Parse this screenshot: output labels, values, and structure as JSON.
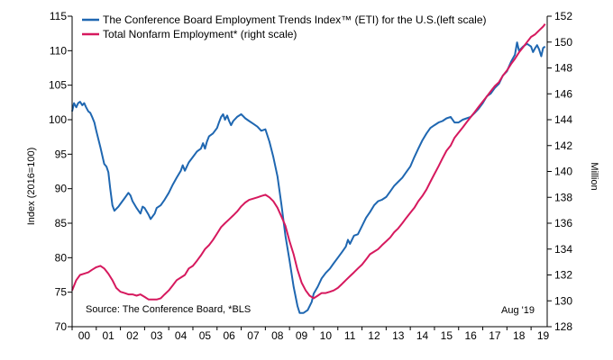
{
  "chart_data": {
    "type": "line",
    "legend": {
      "placement": "top-left",
      "entries": [
        "The Conference Board Employment Trends Index™ (ETI) for the U.S.(left scale)",
        "Total Nonfarm Employment* (right scale)"
      ]
    },
    "ylabel_left": "Index (2016=100)",
    "ylabel_right": "Million",
    "left_axis": {
      "min": 70,
      "max": 115,
      "ticks": [
        "70",
        "75",
        "80",
        "85",
        "90",
        "95",
        "100",
        "105",
        "110",
        "115"
      ]
    },
    "right_axis": {
      "min": 128,
      "max": 152,
      "ticks": [
        "128",
        "130",
        "132",
        "134",
        "136",
        "138",
        "140",
        "142",
        "144",
        "146",
        "148",
        "150",
        "152"
      ]
    },
    "x_axis": {
      "min": 2000,
      "max": 2019.667,
      "ticks": [
        "00",
        "01",
        "02",
        "03",
        "04",
        "05",
        "06",
        "07",
        "08",
        "09",
        "10",
        "11",
        "12",
        "13",
        "14",
        "15",
        "16",
        "17",
        "18",
        "19"
      ]
    },
    "source": "Source: The Conference Board, *BLS",
    "date_note": "Aug '19",
    "colors": {
      "eti": "#1f67b1",
      "nonfarm": "#d6195e",
      "axis": "#000000"
    },
    "series": [
      {
        "name": "The Conference Board Employment Trends Index™ (ETI) for the U.S.(left scale)",
        "axis": "left",
        "points": [
          [
            2000.0,
            101.2
          ],
          [
            2000.08,
            102.4
          ],
          [
            2000.17,
            101.8
          ],
          [
            2000.25,
            102.4
          ],
          [
            2000.33,
            102.6
          ],
          [
            2000.42,
            102.1
          ],
          [
            2000.5,
            102.4
          ],
          [
            2000.58,
            101.8
          ],
          [
            2000.67,
            101.2
          ],
          [
            2000.75,
            101.0
          ],
          [
            2000.83,
            100.4
          ],
          [
            2000.92,
            99.6
          ],
          [
            2001.0,
            98.4
          ],
          [
            2001.17,
            96.0
          ],
          [
            2001.33,
            93.6
          ],
          [
            2001.42,
            93.2
          ],
          [
            2001.5,
            92.4
          ],
          [
            2001.58,
            90.0
          ],
          [
            2001.67,
            87.6
          ],
          [
            2001.75,
            86.8
          ],
          [
            2001.92,
            87.4
          ],
          [
            2002.0,
            87.8
          ],
          [
            2002.17,
            88.6
          ],
          [
            2002.33,
            89.4
          ],
          [
            2002.42,
            89.0
          ],
          [
            2002.5,
            88.2
          ],
          [
            2002.67,
            87.2
          ],
          [
            2002.83,
            86.4
          ],
          [
            2002.92,
            87.4
          ],
          [
            2003.0,
            87.2
          ],
          [
            2003.17,
            86.2
          ],
          [
            2003.25,
            85.6
          ],
          [
            2003.42,
            86.4
          ],
          [
            2003.5,
            87.2
          ],
          [
            2003.67,
            87.6
          ],
          [
            2003.83,
            88.4
          ],
          [
            2004.0,
            89.4
          ],
          [
            2004.17,
            90.6
          ],
          [
            2004.33,
            91.6
          ],
          [
            2004.5,
            92.6
          ],
          [
            2004.58,
            93.4
          ],
          [
            2004.67,
            92.6
          ],
          [
            2004.83,
            93.8
          ],
          [
            2005.0,
            94.6
          ],
          [
            2005.17,
            95.4
          ],
          [
            2005.33,
            95.8
          ],
          [
            2005.42,
            96.6
          ],
          [
            2005.5,
            95.8
          ],
          [
            2005.58,
            96.8
          ],
          [
            2005.67,
            97.6
          ],
          [
            2005.83,
            98.0
          ],
          [
            2006.0,
            98.8
          ],
          [
            2006.08,
            99.6
          ],
          [
            2006.17,
            100.4
          ],
          [
            2006.25,
            100.8
          ],
          [
            2006.33,
            100.0
          ],
          [
            2006.42,
            100.6
          ],
          [
            2006.5,
            99.8
          ],
          [
            2006.58,
            99.2
          ],
          [
            2006.67,
            99.8
          ],
          [
            2006.83,
            100.4
          ],
          [
            2007.0,
            100.8
          ],
          [
            2007.17,
            100.2
          ],
          [
            2007.33,
            99.8
          ],
          [
            2007.5,
            99.4
          ],
          [
            2007.67,
            99.0
          ],
          [
            2007.83,
            98.4
          ],
          [
            2008.0,
            98.6
          ],
          [
            2008.17,
            96.8
          ],
          [
            2008.33,
            94.6
          ],
          [
            2008.5,
            91.8
          ],
          [
            2008.67,
            87.6
          ],
          [
            2008.83,
            83.2
          ],
          [
            2009.0,
            79.6
          ],
          [
            2009.17,
            75.8
          ],
          [
            2009.33,
            73.0
          ],
          [
            2009.42,
            72.0
          ],
          [
            2009.58,
            72.0
          ],
          [
            2009.75,
            72.4
          ],
          [
            2009.92,
            73.6
          ],
          [
            2010.0,
            74.8
          ],
          [
            2010.17,
            75.8
          ],
          [
            2010.33,
            77.0
          ],
          [
            2010.5,
            77.8
          ],
          [
            2010.67,
            78.4
          ],
          [
            2010.83,
            79.2
          ],
          [
            2011.0,
            80.0
          ],
          [
            2011.17,
            80.8
          ],
          [
            2011.33,
            81.6
          ],
          [
            2011.42,
            82.6
          ],
          [
            2011.5,
            82.0
          ],
          [
            2011.67,
            83.2
          ],
          [
            2011.83,
            83.4
          ],
          [
            2012.0,
            84.6
          ],
          [
            2012.17,
            85.8
          ],
          [
            2012.33,
            86.6
          ],
          [
            2012.5,
            87.6
          ],
          [
            2012.67,
            88.2
          ],
          [
            2012.83,
            88.4
          ],
          [
            2013.0,
            88.8
          ],
          [
            2013.17,
            89.6
          ],
          [
            2013.33,
            90.4
          ],
          [
            2013.5,
            91.0
          ],
          [
            2013.67,
            91.6
          ],
          [
            2013.83,
            92.4
          ],
          [
            2014.0,
            93.2
          ],
          [
            2014.17,
            94.6
          ],
          [
            2014.33,
            95.8
          ],
          [
            2014.5,
            97.0
          ],
          [
            2014.67,
            98.0
          ],
          [
            2014.83,
            98.8
          ],
          [
            2015.0,
            99.2
          ],
          [
            2015.17,
            99.6
          ],
          [
            2015.33,
            99.8
          ],
          [
            2015.5,
            100.2
          ],
          [
            2015.67,
            100.4
          ],
          [
            2015.83,
            99.6
          ],
          [
            2016.0,
            99.6
          ],
          [
            2016.17,
            100.0
          ],
          [
            2016.33,
            100.2
          ],
          [
            2016.5,
            100.4
          ],
          [
            2016.67,
            101.0
          ],
          [
            2016.83,
            101.6
          ],
          [
            2017.0,
            102.4
          ],
          [
            2017.17,
            103.4
          ],
          [
            2017.33,
            103.8
          ],
          [
            2017.5,
            104.6
          ],
          [
            2017.67,
            105.2
          ],
          [
            2017.83,
            106.4
          ],
          [
            2018.0,
            107.0
          ],
          [
            2018.17,
            108.4
          ],
          [
            2018.33,
            109.4
          ],
          [
            2018.42,
            111.2
          ],
          [
            2018.5,
            110.0
          ],
          [
            2018.67,
            110.6
          ],
          [
            2018.83,
            111.0
          ],
          [
            2019.0,
            110.6
          ],
          [
            2019.08,
            109.8
          ],
          [
            2019.17,
            110.4
          ],
          [
            2019.25,
            110.8
          ],
          [
            2019.33,
            110.2
          ],
          [
            2019.42,
            109.2
          ],
          [
            2019.5,
            110.4
          ],
          [
            2019.58,
            110.6
          ]
        ]
      },
      {
        "name": "Total Nonfarm Employment* (right scale)",
        "axis": "right",
        "points": [
          [
            2000.0,
            130.8
          ],
          [
            2000.17,
            131.6
          ],
          [
            2000.33,
            132.0
          ],
          [
            2000.5,
            132.1
          ],
          [
            2000.67,
            132.2
          ],
          [
            2000.83,
            132.4
          ],
          [
            2001.0,
            132.6
          ],
          [
            2001.17,
            132.7
          ],
          [
            2001.33,
            132.5
          ],
          [
            2001.5,
            132.1
          ],
          [
            2001.67,
            131.6
          ],
          [
            2001.83,
            131.0
          ],
          [
            2002.0,
            130.7
          ],
          [
            2002.17,
            130.6
          ],
          [
            2002.33,
            130.5
          ],
          [
            2002.5,
            130.5
          ],
          [
            2002.67,
            130.4
          ],
          [
            2002.83,
            130.5
          ],
          [
            2003.0,
            130.3
          ],
          [
            2003.17,
            130.1
          ],
          [
            2003.33,
            130.1
          ],
          [
            2003.5,
            130.1
          ],
          [
            2003.67,
            130.2
          ],
          [
            2003.83,
            130.5
          ],
          [
            2004.0,
            130.8
          ],
          [
            2004.17,
            131.2
          ],
          [
            2004.33,
            131.6
          ],
          [
            2004.5,
            131.8
          ],
          [
            2004.67,
            132.0
          ],
          [
            2004.83,
            132.5
          ],
          [
            2005.0,
            132.7
          ],
          [
            2005.17,
            133.1
          ],
          [
            2005.33,
            133.5
          ],
          [
            2005.5,
            134.0
          ],
          [
            2005.67,
            134.3
          ],
          [
            2005.83,
            134.7
          ],
          [
            2006.0,
            135.2
          ],
          [
            2006.17,
            135.7
          ],
          [
            2006.33,
            136.0
          ],
          [
            2006.5,
            136.3
          ],
          [
            2006.67,
            136.6
          ],
          [
            2006.83,
            136.9
          ],
          [
            2007.0,
            137.3
          ],
          [
            2007.17,
            137.6
          ],
          [
            2007.33,
            137.8
          ],
          [
            2007.5,
            137.9
          ],
          [
            2007.67,
            138.0
          ],
          [
            2007.83,
            138.1
          ],
          [
            2008.0,
            138.2
          ],
          [
            2008.17,
            138.0
          ],
          [
            2008.33,
            137.7
          ],
          [
            2008.5,
            137.2
          ],
          [
            2008.67,
            136.5
          ],
          [
            2008.83,
            135.8
          ],
          [
            2009.0,
            134.6
          ],
          [
            2009.17,
            133.6
          ],
          [
            2009.33,
            132.4
          ],
          [
            2009.5,
            131.4
          ],
          [
            2009.67,
            130.8
          ],
          [
            2009.83,
            130.4
          ],
          [
            2010.0,
            130.2
          ],
          [
            2010.17,
            130.4
          ],
          [
            2010.33,
            130.6
          ],
          [
            2010.5,
            130.6
          ],
          [
            2010.67,
            130.7
          ],
          [
            2010.83,
            130.8
          ],
          [
            2011.0,
            131.0
          ],
          [
            2011.17,
            131.3
          ],
          [
            2011.33,
            131.6
          ],
          [
            2011.5,
            131.9
          ],
          [
            2011.67,
            132.2
          ],
          [
            2011.83,
            132.5
          ],
          [
            2012.0,
            132.8
          ],
          [
            2012.17,
            133.2
          ],
          [
            2012.33,
            133.6
          ],
          [
            2012.5,
            133.8
          ],
          [
            2012.67,
            134.0
          ],
          [
            2012.83,
            134.3
          ],
          [
            2013.0,
            134.6
          ],
          [
            2013.17,
            134.9
          ],
          [
            2013.33,
            135.3
          ],
          [
            2013.5,
            135.6
          ],
          [
            2013.67,
            136.0
          ],
          [
            2013.83,
            136.4
          ],
          [
            2014.0,
            136.8
          ],
          [
            2014.17,
            137.2
          ],
          [
            2014.33,
            137.7
          ],
          [
            2014.5,
            138.1
          ],
          [
            2014.67,
            138.6
          ],
          [
            2014.83,
            139.2
          ],
          [
            2015.0,
            139.8
          ],
          [
            2015.17,
            140.4
          ],
          [
            2015.33,
            141.0
          ],
          [
            2015.5,
            141.6
          ],
          [
            2015.67,
            142.0
          ],
          [
            2015.83,
            142.6
          ],
          [
            2016.0,
            143.0
          ],
          [
            2016.17,
            143.4
          ],
          [
            2016.33,
            143.8
          ],
          [
            2016.5,
            144.2
          ],
          [
            2016.67,
            144.6
          ],
          [
            2016.83,
            145.0
          ],
          [
            2017.0,
            145.4
          ],
          [
            2017.17,
            145.8
          ],
          [
            2017.33,
            146.2
          ],
          [
            2017.5,
            146.6
          ],
          [
            2017.67,
            146.9
          ],
          [
            2017.83,
            147.4
          ],
          [
            2018.0,
            147.8
          ],
          [
            2018.17,
            148.3
          ],
          [
            2018.33,
            148.7
          ],
          [
            2018.5,
            149.2
          ],
          [
            2018.67,
            149.6
          ],
          [
            2018.83,
            150.0
          ],
          [
            2019.0,
            150.4
          ],
          [
            2019.17,
            150.6
          ],
          [
            2019.33,
            150.9
          ],
          [
            2019.5,
            151.2
          ],
          [
            2019.58,
            151.4
          ]
        ]
      }
    ]
  }
}
